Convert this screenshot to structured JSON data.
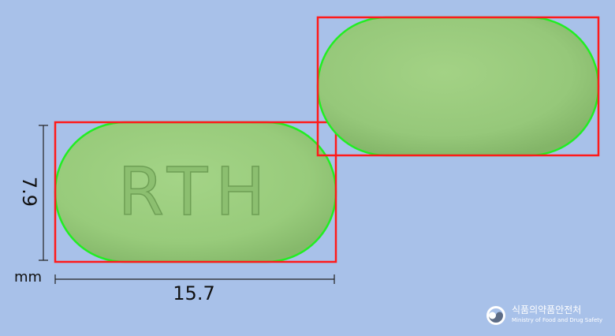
{
  "tablet": {
    "imprint_front": "RTH",
    "imprint_back": "",
    "color": "#9bce7c",
    "shape": "oblong"
  },
  "dimensions": {
    "length_mm": "15.7",
    "width_mm": "7.9",
    "unit": "mm"
  },
  "colors": {
    "background": "#a8c1e9",
    "bounding_box": "#ff1a1a",
    "outline": "#22ee22",
    "tablet": "#9bce7c"
  },
  "logo": {
    "icon": "mfds-taeguk-icon",
    "org_korean": "식품의약품안전처",
    "org_english": "Ministry of Food and Drug Safety"
  }
}
